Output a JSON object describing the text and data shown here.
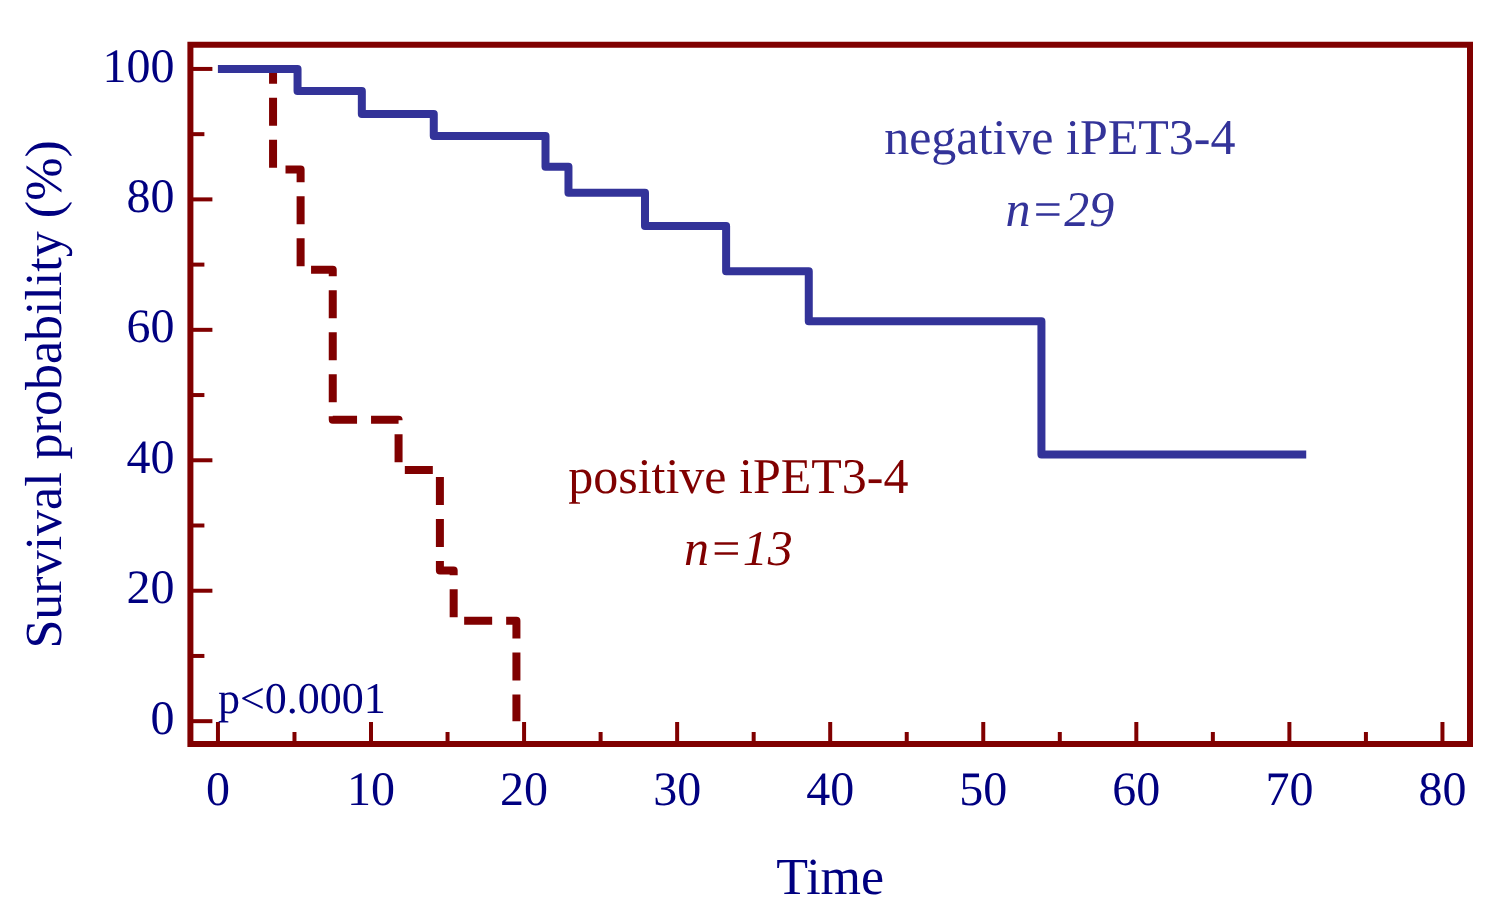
{
  "chart_data": {
    "type": "step",
    "xlabel": "Time",
    "ylabel": "Survival probability (%)",
    "xlim": [
      -1.8,
      81.8
    ],
    "ylim": [
      -3.5,
      103.7
    ],
    "xticks": [
      0,
      {
        "value": 5,
        "label": null
      },
      10,
      {
        "value": 15,
        "label": null
      },
      20,
      {
        "value": 25,
        "label": null
      },
      30,
      {
        "value": 35,
        "label": null
      },
      40,
      {
        "value": 45,
        "label": null
      },
      50,
      {
        "value": 55,
        "label": null
      },
      60,
      {
        "value": 65,
        "label": null
      },
      70,
      {
        "value": 75,
        "label": null
      },
      80
    ],
    "yticks": [
      0,
      {
        "value": 10,
        "label": null
      },
      20,
      {
        "value": 30,
        "label": null
      },
      40,
      {
        "value": 50,
        "label": null
      },
      60,
      {
        "value": 70,
        "label": null
      },
      80,
      {
        "value": 90,
        "label": null
      },
      100
    ],
    "series": [
      {
        "name": "negative iPET3-4",
        "color": "#333399",
        "line_style": "solid",
        "x": [
          0,
          5.2,
          9.4,
          14.1,
          21.4,
          22.9,
          27.9,
          33.2,
          38.6,
          53.8,
          71.1
        ],
        "values": [
          100,
          96.6,
          93.1,
          89.7,
          85,
          81,
          75.9,
          69,
          61.3,
          40.9,
          40.9
        ]
      },
      {
        "name": "positive iPET3-4",
        "color": "#800000",
        "line_style": "dashed",
        "x": [
          0,
          3.6,
          5.4,
          7.5,
          11.8,
          14.5,
          15.4,
          19.5
        ],
        "values": [
          100,
          84.6,
          69.2,
          46.2,
          38.5,
          23.1,
          15.4,
          0
        ]
      }
    ],
    "annotations": [
      "n=29",
      "n=13",
      "p<0.0001"
    ],
    "grid": false,
    "legend": false,
    "marker": "none"
  }
}
